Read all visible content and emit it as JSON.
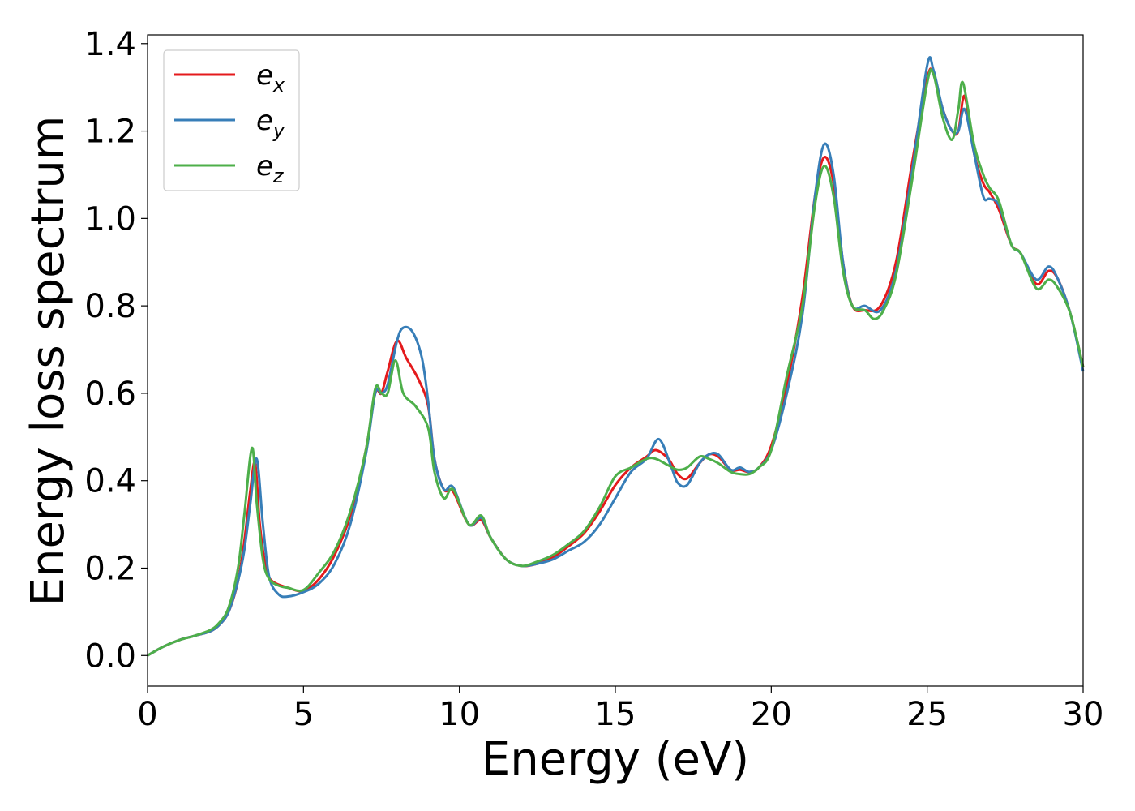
{
  "chart_data": {
    "type": "line",
    "xlabel": "Energy (eV)",
    "ylabel": "Energy loss spectrum",
    "xlim": [
      0,
      30
    ],
    "ylim": [
      -0.07,
      1.42
    ],
    "xticks": [
      0,
      5,
      10,
      15,
      20,
      25,
      30
    ],
    "xtick_labels": [
      "0",
      "5",
      "10",
      "15",
      "20",
      "25",
      "30"
    ],
    "yticks": [
      0.0,
      0.2,
      0.4,
      0.6,
      0.8,
      1.0,
      1.2,
      1.4
    ],
    "ytick_labels": [
      "0.0",
      "0.2",
      "0.4",
      "0.6",
      "0.8",
      "1.0",
      "1.2",
      "1.4"
    ],
    "grid": false,
    "legend_position": "top-left",
    "series": [
      {
        "name": "e_x",
        "legend_base": "e",
        "legend_sub": "x",
        "color": "#e41a1c",
        "x": [
          0,
          0.5,
          1,
          1.5,
          2,
          2.3,
          2.6,
          2.9,
          3.1,
          3.3,
          3.45,
          3.6,
          3.8,
          4,
          4.5,
          5,
          5.5,
          6,
          6.5,
          7,
          7.3,
          7.5,
          7.7,
          8,
          8.3,
          8.7,
          9,
          9.2,
          9.5,
          9.8,
          10.3,
          10.7,
          11,
          11.5,
          12,
          12.5,
          13,
          13.5,
          14,
          14.5,
          15,
          15.5,
          16,
          16.3,
          16.7,
          17,
          17.3,
          17.7,
          18,
          18.3,
          18.7,
          19,
          19.3,
          19.6,
          20,
          20.5,
          21,
          21.4,
          21.7,
          22,
          22.3,
          22.6,
          23,
          23.5,
          24,
          24.5,
          25,
          25.2,
          25.5,
          25.8,
          26,
          26.2,
          26.5,
          26.8,
          27,
          27.3,
          27.7,
          28,
          28.5,
          28.9,
          29.2,
          29.6,
          30
        ],
        "y": [
          0.0,
          0.02,
          0.035,
          0.045,
          0.055,
          0.07,
          0.1,
          0.17,
          0.26,
          0.38,
          0.44,
          0.3,
          0.2,
          0.17,
          0.155,
          0.148,
          0.175,
          0.23,
          0.32,
          0.47,
          0.6,
          0.6,
          0.65,
          0.72,
          0.68,
          0.63,
          0.57,
          0.45,
          0.38,
          0.375,
          0.3,
          0.31,
          0.27,
          0.22,
          0.205,
          0.21,
          0.225,
          0.25,
          0.28,
          0.33,
          0.39,
          0.43,
          0.455,
          0.47,
          0.45,
          0.415,
          0.405,
          0.44,
          0.46,
          0.455,
          0.425,
          0.425,
          0.42,
          0.43,
          0.48,
          0.62,
          0.82,
          1.05,
          1.14,
          1.08,
          0.9,
          0.8,
          0.79,
          0.8,
          0.9,
          1.12,
          1.32,
          1.33,
          1.25,
          1.2,
          1.2,
          1.28,
          1.15,
          1.08,
          1.06,
          1.02,
          0.94,
          0.92,
          0.85,
          0.88,
          0.86,
          0.78,
          0.66
        ]
      },
      {
        "name": "e_y",
        "legend_base": "e",
        "legend_sub": "y",
        "color": "#377eb8",
        "x": [
          0,
          0.5,
          1,
          1.5,
          2,
          2.3,
          2.6,
          2.9,
          3.1,
          3.3,
          3.5,
          3.7,
          3.9,
          4.2,
          4.5,
          5,
          5.5,
          6,
          6.5,
          7,
          7.3,
          7.5,
          7.7,
          8,
          8.2,
          8.5,
          8.8,
          9,
          9.2,
          9.5,
          9.8,
          10.3,
          10.7,
          11,
          11.5,
          12,
          12.5,
          13,
          13.5,
          14,
          14.5,
          15,
          15.5,
          16,
          16.4,
          16.8,
          17,
          17.3,
          17.7,
          18,
          18.3,
          18.7,
          19,
          19.3,
          19.6,
          20,
          20.5,
          21,
          21.4,
          21.7,
          22,
          22.3,
          22.6,
          23,
          23.5,
          24,
          24.5,
          25,
          25.2,
          25.5,
          25.8,
          26,
          26.2,
          26.5,
          26.8,
          27,
          27.3,
          27.7,
          28,
          28.5,
          28.9,
          29.2,
          29.6,
          30
        ],
        "y": [
          0.0,
          0.02,
          0.035,
          0.045,
          0.055,
          0.07,
          0.1,
          0.17,
          0.24,
          0.35,
          0.45,
          0.3,
          0.18,
          0.14,
          0.135,
          0.145,
          0.165,
          0.21,
          0.3,
          0.46,
          0.6,
          0.6,
          0.62,
          0.72,
          0.75,
          0.74,
          0.68,
          0.58,
          0.45,
          0.38,
          0.385,
          0.3,
          0.315,
          0.27,
          0.22,
          0.205,
          0.21,
          0.22,
          0.24,
          0.26,
          0.3,
          0.36,
          0.42,
          0.45,
          0.495,
          0.43,
          0.395,
          0.39,
          0.44,
          0.46,
          0.46,
          0.425,
          0.43,
          0.42,
          0.43,
          0.47,
          0.6,
          0.78,
          1.05,
          1.17,
          1.1,
          0.9,
          0.8,
          0.8,
          0.79,
          0.88,
          1.1,
          1.35,
          1.34,
          1.25,
          1.2,
          1.2,
          1.25,
          1.15,
          1.05,
          1.045,
          1.03,
          0.94,
          0.92,
          0.86,
          0.89,
          0.86,
          0.78,
          0.65
        ]
      },
      {
        "name": "e_z",
        "legend_base": "e",
        "legend_sub": "z",
        "color": "#4daf4a",
        "x": [
          0,
          0.5,
          1,
          1.5,
          2,
          2.3,
          2.6,
          2.9,
          3.1,
          3.35,
          3.5,
          3.7,
          3.9,
          4.2,
          4.5,
          5,
          5.5,
          6,
          6.5,
          7,
          7.3,
          7.5,
          7.7,
          7.95,
          8.2,
          8.6,
          9,
          9.2,
          9.5,
          9.8,
          10.3,
          10.7,
          11,
          11.5,
          12,
          12.5,
          13,
          13.5,
          14,
          14.5,
          15,
          15.5,
          16,
          16.3,
          16.7,
          17,
          17.3,
          17.7,
          18,
          18.3,
          18.7,
          19,
          19.3,
          19.6,
          20,
          20.5,
          21,
          21.4,
          21.7,
          22,
          22.3,
          22.6,
          23,
          23.3,
          23.6,
          24,
          24.5,
          25,
          25.2,
          25.5,
          25.8,
          26,
          26.15,
          26.5,
          26.8,
          27,
          27.3,
          27.7,
          28,
          28.5,
          28.9,
          29.2,
          29.6,
          30
        ],
        "y": [
          0.0,
          0.02,
          0.035,
          0.045,
          0.058,
          0.075,
          0.11,
          0.2,
          0.32,
          0.475,
          0.35,
          0.22,
          0.175,
          0.16,
          0.155,
          0.15,
          0.19,
          0.24,
          0.33,
          0.47,
          0.61,
          0.6,
          0.6,
          0.675,
          0.6,
          0.57,
          0.52,
          0.42,
          0.36,
          0.38,
          0.3,
          0.32,
          0.27,
          0.22,
          0.205,
          0.215,
          0.23,
          0.255,
          0.285,
          0.34,
          0.41,
          0.43,
          0.45,
          0.45,
          0.435,
          0.425,
          0.43,
          0.455,
          0.45,
          0.44,
          0.42,
          0.415,
          0.415,
          0.43,
          0.47,
          0.64,
          0.8,
          1.03,
          1.12,
          1.05,
          0.88,
          0.8,
          0.79,
          0.77,
          0.79,
          0.87,
          1.08,
          1.31,
          1.33,
          1.23,
          1.18,
          1.25,
          1.31,
          1.17,
          1.1,
          1.07,
          1.04,
          0.94,
          0.92,
          0.84,
          0.86,
          0.84,
          0.78,
          0.66
        ]
      }
    ]
  }
}
